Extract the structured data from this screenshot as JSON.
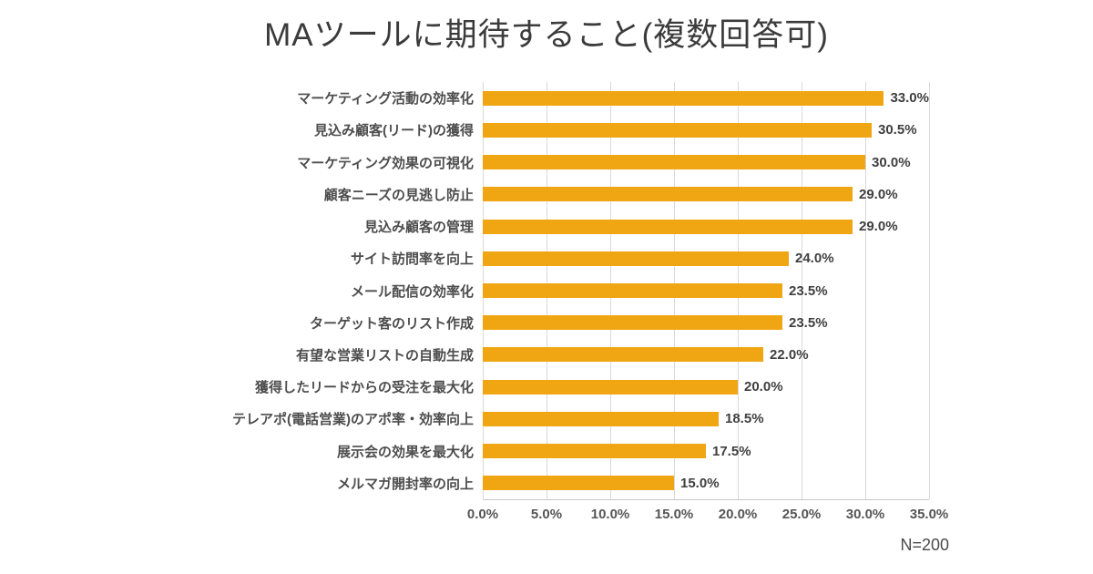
{
  "chart": {
    "title": "MAツールに期待すること(複数回答可)",
    "note": "N=200"
  },
  "chart_data": {
    "type": "bar",
    "orientation": "horizontal",
    "title": "MAツールに期待すること(複数回答可)",
    "categories": [
      "マーケティング活動の効率化",
      "見込み顧客(リード)の獲得",
      "マーケティング効果の可視化",
      "顧客ニーズの見逃し防止",
      "見込み顧客の管理",
      "サイト訪問率を向上",
      "メール配信の効率化",
      "ターゲット客のリスト作成",
      "有望な営業リストの自動生成",
      "獲得したリードからの受注を最大化",
      "テレアポ(電話営業)のアポ率・効率向上",
      "展示会の効果を最大化",
      "メルマガ開封率の向上"
    ],
    "values": [
      33.0,
      30.5,
      30.0,
      29.0,
      29.0,
      24.0,
      23.5,
      23.5,
      22.0,
      20.0,
      18.5,
      17.5,
      15.0
    ],
    "value_labels": [
      "33.0%",
      "30.5%",
      "30.0%",
      "29.0%",
      "29.0%",
      "24.0%",
      "23.5%",
      "23.5%",
      "22.0%",
      "20.0%",
      "18.5%",
      "17.5%",
      "15.0%"
    ],
    "xlim": [
      0,
      35
    ],
    "xticks": [
      "0.0%",
      "5.0%",
      "10.0%",
      "15.0%",
      "20.0%",
      "25.0%",
      "30.0%",
      "35.0%"
    ],
    "xlabel": "",
    "ylabel": "",
    "grid": true,
    "legend": false,
    "bar_color": "#F0A513",
    "note": "N=200"
  }
}
